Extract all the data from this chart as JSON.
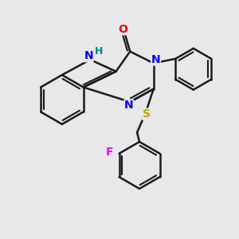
{
  "background_color": "#e8e8eb",
  "bond_color": "#1a1a1a",
  "bond_width": 1.8,
  "atom_colors": {
    "N": "#0000ee",
    "O": "#ee0000",
    "S": "#bbaa00",
    "F": "#ee00ee",
    "H": "#008888",
    "C": "#1a1a1a"
  },
  "font_size_atom": 10,
  "fig_size": [
    3.0,
    3.0
  ],
  "dpi": 100
}
